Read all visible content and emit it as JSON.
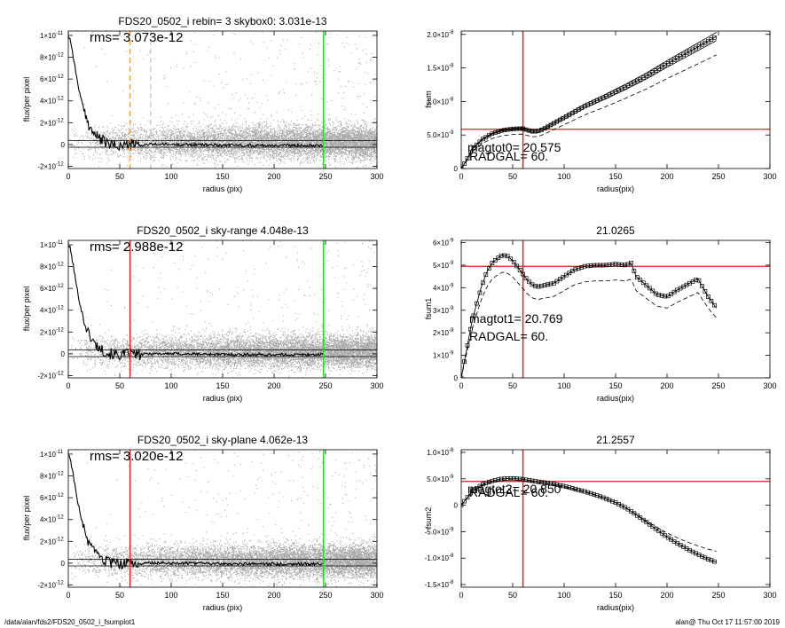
{
  "footer": {
    "path": "/data/alan/fds2/FDS20_0502_i_fsumplot1",
    "user_time": "alan@  Thu Oct 17 11:57:00 2019"
  },
  "colors": {
    "scatter": "#a8a8a8",
    "red_line": "#dd2020",
    "green_line": "#22dd22",
    "orange_dash": "#f0a040"
  },
  "chart_data": [
    {
      "id": "profile_top",
      "type": "scatter",
      "title": "FDS20_0502_i rebin= 3    skybox0:  3.031e-13",
      "xlabel": "radius (pix)",
      "ylabel": "flux/per pixel",
      "xlim": [
        0,
        300
      ],
      "ylim": [
        -2.2e-12,
        1.04e-11
      ],
      "xticks": [
        0,
        50,
        100,
        150,
        200,
        250,
        300
      ],
      "xtick_labels": [
        "0",
        "50",
        "100",
        "150",
        "200",
        "250",
        "300"
      ],
      "yticks": [
        -2e-12,
        0,
        2e-12,
        4e-12,
        6e-12,
        8e-12,
        1e-11
      ],
      "ytick_labels": [
        "-2×10",
        "0",
        "2×10",
        "4×10",
        "6×10",
        "8×10",
        "1×10"
      ],
      "ytick_exps": [
        "-12",
        "",
        "-12",
        "-12",
        "-12",
        "-12",
        "-11"
      ],
      "annotations": [
        "rms= 3.073e-12"
      ],
      "vlines": [
        {
          "x": 60,
          "color": "orange_dash",
          "style": "dash"
        },
        {
          "x": 80,
          "color": "light_dash",
          "style": "dash"
        },
        {
          "x": 248,
          "color": "green_line",
          "style": "solid"
        }
      ],
      "hlines": [
        3.5e-13,
        -2.5e-13
      ],
      "profile": {
        "x": [
          0,
          2,
          5,
          8,
          12,
          16,
          20,
          25,
          30,
          35,
          40,
          50,
          60,
          70,
          80,
          100,
          150,
          200,
          248
        ],
        "y": [
          1e-11,
          9.6e-12,
          8e-12,
          6.2e-12,
          4.3e-12,
          2.8e-12,
          1.8e-12,
          1e-12,
          5.5e-13,
          2.5e-13,
          0,
          -1.2e-13,
          4e-14,
          -8e-14,
          3e-14,
          1e-14,
          -5e-14,
          -8e-14,
          -6e-14
        ]
      }
    },
    {
      "id": "fsum_top",
      "type": "line",
      "title": "",
      "xlabel": "radius(pix)",
      "ylabel": "fsum",
      "xlim": [
        0,
        300
      ],
      "ylim": [
        0,
        2.05e-08
      ],
      "xticks": [
        0,
        50,
        100,
        150,
        200,
        250,
        300
      ],
      "xtick_labels": [
        "0",
        "50",
        "100",
        "150",
        "200",
        "250",
        "300"
      ],
      "yticks": [
        0,
        5e-09,
        1e-08,
        1.5e-08,
        2e-08
      ],
      "ytick_labels": [
        "0",
        "5.0×10",
        "1.0×10",
        "1.5×10",
        "2.0×10"
      ],
      "ytick_exps": [
        "",
        "-9",
        "-8",
        "-8",
        "-8"
      ],
      "annotations": [
        "magtot0=  20.575",
        "RADGAL=     60."
      ],
      "vline": 60,
      "hline": 5.85e-09,
      "series": {
        "x": [
          0,
          5,
          10,
          20,
          30,
          40,
          50,
          55,
          60,
          65,
          70,
          75,
          80,
          100,
          120,
          140,
          160,
          180,
          200,
          220,
          240,
          248
        ],
        "y": [
          0,
          1.2e-09,
          2.8e-09,
          4.3e-09,
          5.2e-09,
          5.7e-09,
          5.9e-09,
          5.95e-09,
          5.95e-09,
          5.7e-09,
          5.5e-09,
          5.6e-09,
          5.9e-09,
          7.6e-09,
          9.3e-09,
          1.07e-08,
          1.22e-08,
          1.38e-08,
          1.56e-08,
          1.73e-08,
          1.9e-08,
          1.97e-08
        ]
      }
    },
    {
      "id": "profile_mid",
      "type": "scatter",
      "title": "FDS20_0502_i sky-range  4.048e-13",
      "xlabel": "radius (pix)",
      "ylabel": "flux/per pixel",
      "xlim": [
        0,
        300
      ],
      "ylim": [
        -2.2e-12,
        1.04e-11
      ],
      "xticks": [
        0,
        50,
        100,
        150,
        200,
        250,
        300
      ],
      "xtick_labels": [
        "0",
        "50",
        "100",
        "150",
        "200",
        "250",
        "300"
      ],
      "yticks": [
        -2e-12,
        0,
        2e-12,
        4e-12,
        6e-12,
        8e-12,
        1e-11
      ],
      "ytick_labels": [
        "-2×10",
        "0",
        "2×10",
        "4×10",
        "6×10",
        "8×10",
        "1×10"
      ],
      "ytick_exps": [
        "-12",
        "",
        "-12",
        "-12",
        "-12",
        "-12",
        "-11"
      ],
      "annotations": [
        "rms= 2.988e-12"
      ],
      "vlines": [
        {
          "x": 60,
          "color": "red_line",
          "style": "solid"
        },
        {
          "x": 248,
          "color": "green_line",
          "style": "solid"
        }
      ],
      "hlines": [
        3.5e-13,
        -2.5e-13
      ],
      "profile": {
        "x": [
          0,
          2,
          5,
          8,
          12,
          16,
          20,
          25,
          30,
          35,
          40,
          50,
          60,
          70,
          80,
          100,
          150,
          200,
          248
        ],
        "y": [
          1e-11,
          9.6e-12,
          8e-12,
          6.2e-12,
          4.3e-12,
          2.8e-12,
          1.8e-12,
          1e-12,
          5.5e-13,
          2.5e-13,
          0,
          -1.2e-13,
          4e-14,
          -8e-14,
          3e-14,
          1e-14,
          -5e-14,
          -8e-14,
          -6e-14
        ]
      }
    },
    {
      "id": "fsum_mid",
      "type": "line",
      "title": "21.0265",
      "xlabel": "radius(pix)",
      "ylabel": "fsum1",
      "xlim": [
        0,
        300
      ],
      "ylim": [
        0,
        6.1e-09
      ],
      "xticks": [
        0,
        50,
        100,
        150,
        200,
        250,
        300
      ],
      "xtick_labels": [
        "0",
        "50",
        "100",
        "150",
        "200",
        "250",
        "300"
      ],
      "yticks": [
        0,
        1e-09,
        2e-09,
        3e-09,
        4e-09,
        5e-09,
        6e-09
      ],
      "ytick_labels": [
        "0",
        "1×10",
        "2×10",
        "3×10",
        "4×10",
        "5×10",
        "6×10"
      ],
      "ytick_exps": [
        "",
        "-9",
        "-9",
        "-9",
        "-9",
        "-9",
        "-9"
      ],
      "annotations": [
        "magtot1=  20.769",
        "RADGAL=     60."
      ],
      "vline": 60,
      "hline": 4.95e-09,
      "series": {
        "x": [
          0,
          5,
          10,
          15,
          20,
          25,
          30,
          35,
          40,
          45,
          50,
          55,
          60,
          65,
          70,
          75,
          80,
          90,
          100,
          110,
          120,
          130,
          140,
          150,
          160,
          165,
          170,
          180,
          190,
          200,
          210,
          220,
          230,
          240,
          248
        ],
        "y": [
          0,
          1.2e-09,
          2.4e-09,
          3.3e-09,
          4.1e-09,
          4.7e-09,
          5.1e-09,
          5.3e-09,
          5.45e-09,
          5.4e-09,
          5.2e-09,
          4.9e-09,
          4.6e-09,
          4.3e-09,
          4.1e-09,
          4.05e-09,
          4.1e-09,
          4.2e-09,
          4.5e-09,
          4.8e-09,
          4.95e-09,
          5e-09,
          5e-09,
          5.05e-09,
          5e-09,
          5.1e-09,
          4.5e-09,
          4.1e-09,
          3.7e-09,
          3.6e-09,
          3.9e-09,
          4.15e-09,
          4.4e-09,
          3.6e-09,
          3.1e-09
        ]
      }
    },
    {
      "id": "profile_bot",
      "type": "scatter",
      "title": "FDS20_0502_i sky-plane  4.062e-13",
      "xlabel": "radius (pix)",
      "ylabel": "flux/per pixel",
      "xlim": [
        0,
        300
      ],
      "ylim": [
        -2.2e-12,
        1.04e-11
      ],
      "xticks": [
        0,
        50,
        100,
        150,
        200,
        250,
        300
      ],
      "xtick_labels": [
        "0",
        "50",
        "100",
        "150",
        "200",
        "250",
        "300"
      ],
      "yticks": [
        -2e-12,
        0,
        2e-12,
        4e-12,
        6e-12,
        8e-12,
        1e-11
      ],
      "ytick_labels": [
        "-2×10",
        "0",
        "2×10",
        "4×10",
        "6×10",
        "8×10",
        "1×10"
      ],
      "ytick_exps": [
        "-12",
        "",
        "-12",
        "-12",
        "-12",
        "-12",
        "-11"
      ],
      "annotations": [
        "rms= 3.020e-12"
      ],
      "vlines": [
        {
          "x": 60,
          "color": "red_line",
          "style": "solid"
        },
        {
          "x": 248,
          "color": "green_line",
          "style": "solid"
        }
      ],
      "hlines": [
        3.5e-13,
        -2.5e-13
      ],
      "profile": {
        "x": [
          0,
          2,
          5,
          8,
          12,
          16,
          20,
          25,
          30,
          35,
          40,
          50,
          60,
          70,
          80,
          100,
          150,
          200,
          248
        ],
        "y": [
          1e-11,
          9.6e-12,
          8e-12,
          6.2e-12,
          4.3e-12,
          2.8e-12,
          1.8e-12,
          1e-12,
          5.5e-13,
          2.5e-13,
          0,
          -1.2e-13,
          4e-14,
          -8e-14,
          3e-14,
          1e-14,
          -5e-14,
          -8e-14,
          -6e-14
        ]
      }
    },
    {
      "id": "fsum_bot",
      "type": "line",
      "title": "21.2557",
      "xlabel": "radius(pix)",
      "ylabel": "fsum2",
      "xlim": [
        0,
        300
      ],
      "ylim": [
        -1.55e-08,
        1.05e-08
      ],
      "xticks": [
        0,
        50,
        100,
        150,
        200,
        250,
        300
      ],
      "xtick_labels": [
        "0",
        "50",
        "100",
        "150",
        "200",
        "250",
        "300"
      ],
      "yticks": [
        -1.5e-08,
        -1e-08,
        -5e-09,
        0,
        5e-09,
        1e-08
      ],
      "ytick_labels": [
        "-1.5×10",
        "-1.0×10",
        "-5.0×10",
        "0",
        "5.0×10",
        "1.0×10"
      ],
      "ytick_exps": [
        "-8",
        "-8",
        "-9",
        "",
        "-9",
        "-8"
      ],
      "annotations": [
        "magtot2=  20.850",
        "RADGAL=     60."
      ],
      "vline": 60,
      "hline": 4.5e-09,
      "series": {
        "x": [
          0,
          10,
          20,
          30,
          40,
          50,
          60,
          70,
          80,
          90,
          100,
          110,
          120,
          130,
          140,
          150,
          160,
          170,
          180,
          190,
          200,
          210,
          220,
          230,
          240,
          248
        ],
        "y": [
          0,
          2.5e-09,
          3.9e-09,
          4.6e-09,
          5e-09,
          5.1e-09,
          4.9e-09,
          4.6e-09,
          4.3e-09,
          4e-09,
          3.6e-09,
          3.1e-09,
          2.6e-09,
          2e-09,
          1.3e-09,
          5e-10,
          -5e-10,
          -1.8e-09,
          -3.2e-09,
          -4.6e-09,
          -6e-09,
          -7.2e-09,
          -8.3e-09,
          -9.3e-09,
          -1.02e-08,
          -1.08e-08
        ]
      }
    }
  ]
}
